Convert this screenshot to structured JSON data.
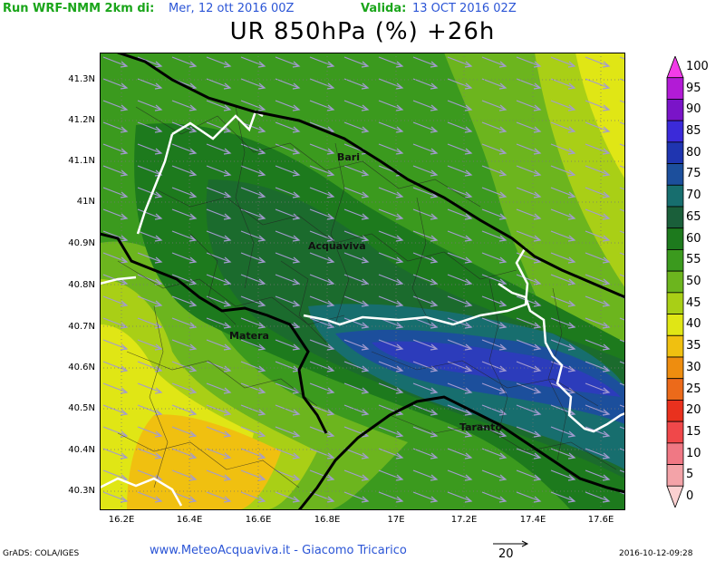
{
  "header": {
    "run_label": "Run WRF-NMM 2km di:",
    "run_date": "Mer, 12 ott 2016 00Z",
    "valid_label": "Valida:",
    "valid_date": "13 OCT 2016 02Z"
  },
  "title": "UR 850hPa (%) +26h",
  "axes": {
    "lat_labels": [
      "41.3N",
      "41.2N",
      "41.1N",
      "41N",
      "40.9N",
      "40.8N",
      "40.7N",
      "40.6N",
      "40.5N",
      "40.4N",
      "40.3N"
    ],
    "lon_labels": [
      "16.2E",
      "16.4E",
      "16.6E",
      "16.8E",
      "17E",
      "17.2E",
      "17.4E",
      "17.6E"
    ]
  },
  "cities": [
    {
      "name": "Bari"
    },
    {
      "name": "Acquaviva"
    },
    {
      "name": "Matera"
    },
    {
      "name": "Taranto"
    }
  ],
  "colorbar": {
    "labels": [
      "100",
      "95",
      "90",
      "85",
      "80",
      "75",
      "70",
      "65",
      "60",
      "55",
      "50",
      "45",
      "40",
      "35",
      "30",
      "25",
      "20",
      "15",
      "10",
      "5",
      "0"
    ],
    "colors": [
      "#f23ce8",
      "#b21bd6",
      "#7a14c8",
      "#3b2ad9",
      "#1f35b0",
      "#1c4f9c",
      "#176e6e",
      "#1a5f3a",
      "#1d7a1d",
      "#3b9a1e",
      "#6cb51e",
      "#a9cf16",
      "#e0e615",
      "#f0c010",
      "#ee8d0f",
      "#ec6a1a",
      "#e9311e",
      "#f0484a",
      "#f07884",
      "#f3a3a8",
      "#fbd1d1"
    ]
  },
  "footer": {
    "grads": "GrADS: COLA/IGES",
    "site": "www.MeteoAcquaviva.it - Giacomo Tricarico",
    "vector_scale": "20",
    "timestamp": "2016-10-12-09:28"
  }
}
